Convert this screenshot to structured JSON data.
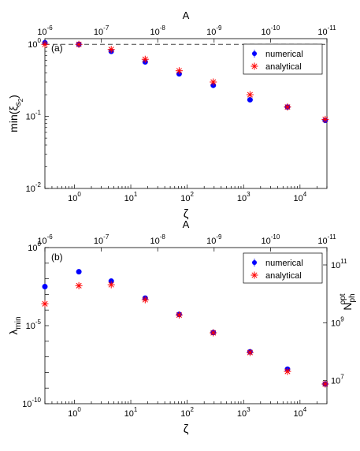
{
  "colors": {
    "numerical": "#0000ff",
    "analytical": "#ff0000",
    "axis": "#000000",
    "ref_line": "#444444"
  },
  "chart_data": [
    {
      "type": "scatter",
      "panel_label": "(a)",
      "top_axis_label": "A",
      "top_tick_labels": [
        {
          "base": "10",
          "exp": "-6"
        },
        {
          "base": "10",
          "exp": "-7"
        },
        {
          "base": "10",
          "exp": "-8"
        },
        {
          "base": "10",
          "exp": "-9"
        },
        {
          "base": "10",
          "exp": "-10"
        },
        {
          "base": "10",
          "exp": "-11"
        }
      ],
      "xlabel": "ζ",
      "ylabel": "min(ξ",
      "ylabel_sub": "s",
      "ylabel_subsub": "2",
      "ylabel_close": ")",
      "x_tick_labels": [
        {
          "base": "10",
          "exp": "0"
        },
        {
          "base": "10",
          "exp": "1"
        },
        {
          "base": "10",
          "exp": "2"
        },
        {
          "base": "10",
          "exp": "3"
        },
        {
          "base": "10",
          "exp": "4"
        }
      ],
      "y_tick_labels": [
        {
          "base": "10",
          "exp": "0"
        },
        {
          "base": "10",
          "exp": "-1"
        },
        {
          "base": "10",
          "exp": "-2"
        }
      ],
      "xscale": "log",
      "yscale": "log",
      "xlim": [
        0.3,
        30000
      ],
      "ylim": [
        0.01,
        1.2
      ],
      "reference_line_y": 1.0,
      "legend": {
        "position": "top-right",
        "entries": [
          "numerical",
          "analytical"
        ]
      },
      "series": [
        {
          "name": "numerical",
          "marker": "filled-circle-with-errorbar",
          "x": [
            0.3,
            1.2,
            4.5,
            18,
            72,
            290,
            1300,
            6000,
            28000
          ],
          "y": [
            1.05,
            1.0,
            0.8,
            0.57,
            0.39,
            0.27,
            0.17,
            0.135,
            0.088
          ]
        },
        {
          "name": "analytical",
          "marker": "asterisk",
          "x": [
            0.3,
            1.2,
            4.5,
            18,
            72,
            290,
            1300,
            6000,
            28000
          ],
          "y": [
            1.0,
            1.0,
            0.85,
            0.62,
            0.43,
            0.3,
            0.2,
            0.135,
            0.091
          ]
        }
      ]
    },
    {
      "type": "scatter",
      "panel_label": "(b)",
      "top_axis_label": "A",
      "top_tick_labels": [
        {
          "base": "10",
          "exp": "-6"
        },
        {
          "base": "10",
          "exp": "-7"
        },
        {
          "base": "10",
          "exp": "-8"
        },
        {
          "base": "10",
          "exp": "-9"
        },
        {
          "base": "10",
          "exp": "-10"
        },
        {
          "base": "10",
          "exp": "-11"
        }
      ],
      "xlabel": "ζ",
      "ylabel": "λ",
      "ylabel_sub": "min",
      "right_ylabel": "N",
      "right_ylabel_sub": "ph",
      "right_ylabel_sup": "opt",
      "x_tick_labels": [
        {
          "base": "10",
          "exp": "0"
        },
        {
          "base": "10",
          "exp": "1"
        },
        {
          "base": "10",
          "exp": "2"
        },
        {
          "base": "10",
          "exp": "3"
        },
        {
          "base": "10",
          "exp": "4"
        }
      ],
      "y_tick_labels": [
        {
          "base": "10",
          "exp": "0"
        },
        {
          "base": "10",
          "exp": "-5"
        },
        {
          "base": "10",
          "exp": "-10"
        }
      ],
      "right_tick_labels": [
        {
          "base": "10",
          "exp": "11"
        },
        {
          "base": "10",
          "exp": "9"
        },
        {
          "base": "10",
          "exp": "7"
        }
      ],
      "right_tick_log_values": [
        11,
        9,
        7
      ],
      "xscale": "log",
      "yscale": "log",
      "xlim": [
        0.3,
        30000
      ],
      "ylim": [
        1e-10,
        1
      ],
      "legend": {
        "position": "top-right",
        "entries": [
          "numerical",
          "analytical"
        ]
      },
      "series": [
        {
          "name": "numerical",
          "marker": "filled-circle-with-errorbar",
          "x": [
            0.3,
            1.2,
            4.5,
            18,
            72,
            290,
            1300,
            6000,
            28000
          ],
          "y": [
            0.00316,
            0.0282,
            0.0071,
            0.000575,
            5.25e-05,
            3.63e-06,
            2.09e-07,
            1.62e-08,
            1.82e-09
          ]
        },
        {
          "name": "analytical",
          "marker": "asterisk",
          "x": [
            0.3,
            1.2,
            4.5,
            18,
            72,
            290,
            1300,
            6000,
            28000
          ],
          "y": [
            0.000251,
            0.00363,
            0.00417,
            0.000457,
            4.79e-05,
            3.47e-06,
            1.91e-07,
            1.17e-08,
            1.82e-09
          ]
        }
      ]
    }
  ]
}
